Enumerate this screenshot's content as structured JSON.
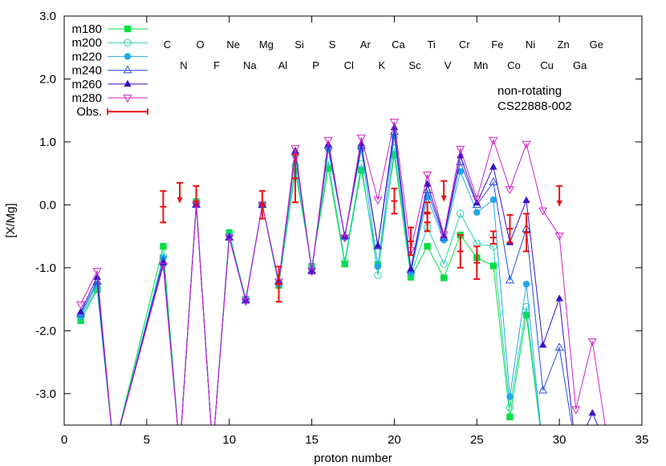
{
  "chart_data": {
    "type": "scatter",
    "xlabel": "proton number",
    "ylabel": "[X/Mg]",
    "xlim": [
      0,
      35
    ],
    "ylim": [
      -3.5,
      3.0
    ],
    "xticks": [
      0,
      5,
      10,
      15,
      20,
      25,
      30,
      35
    ],
    "xtick_labels": [
      "0",
      "5",
      "10",
      "15",
      "20",
      "25",
      "30",
      "35"
    ],
    "yticks": [
      -3.0,
      -2.0,
      -1.0,
      0.0,
      1.0,
      2.0,
      3.0
    ],
    "ytick_labels": [
      "-3.0",
      "-2.0",
      "-1.0",
      "0.0",
      "1.0",
      "2.0",
      "3.0"
    ],
    "grid": false,
    "legend_position": "top-left",
    "annotations": [
      "non-rotating",
      "CS22888-002"
    ],
    "element_labels_row1": [
      {
        "z": 6,
        "label": "C"
      },
      {
        "z": 8,
        "label": "O"
      },
      {
        "z": 10,
        "label": "Ne"
      },
      {
        "z": 12,
        "label": "Mg"
      },
      {
        "z": 14,
        "label": "Si"
      },
      {
        "z": 16,
        "label": "S"
      },
      {
        "z": 18,
        "label": "Ar"
      },
      {
        "z": 20,
        "label": "Ca"
      },
      {
        "z": 22,
        "label": "Ti"
      },
      {
        "z": 24,
        "label": "Cr"
      },
      {
        "z": 26,
        "label": "Fe"
      },
      {
        "z": 28,
        "label": "Ni"
      },
      {
        "z": 30,
        "label": "Zn"
      },
      {
        "z": 32,
        "label": "Ge"
      }
    ],
    "element_labels_row2": [
      {
        "z": 7,
        "label": "N"
      },
      {
        "z": 9,
        "label": "F"
      },
      {
        "z": 11,
        "label": "Na"
      },
      {
        "z": 13,
        "label": "Al"
      },
      {
        "z": 15,
        "label": "P"
      },
      {
        "z": 17,
        "label": "Cl"
      },
      {
        "z": 19,
        "label": "K"
      },
      {
        "z": 21,
        "label": "Sc"
      },
      {
        "z": 23,
        "label": "V"
      },
      {
        "z": 25,
        "label": "Mn"
      },
      {
        "z": 27,
        "label": "Co"
      },
      {
        "z": 29,
        "label": "Cu"
      },
      {
        "z": 31,
        "label": "Ga"
      }
    ],
    "series": [
      {
        "name": "m180",
        "color": "#00e040",
        "marker": "square-filled",
        "points": [
          [
            1,
            -1.84
          ],
          [
            2,
            -1.35
          ],
          [
            3,
            -3.9
          ],
          [
            6,
            -0.66
          ],
          [
            7,
            -3.9
          ],
          [
            8,
            0.05
          ],
          [
            9,
            -3.9
          ],
          [
            10,
            -0.44
          ],
          [
            11,
            -1.5
          ],
          [
            12,
            0.0
          ],
          [
            13,
            -1.28
          ],
          [
            14,
            0.54
          ],
          [
            15,
            -0.98
          ],
          [
            16,
            0.58
          ],
          [
            17,
            -0.94
          ],
          [
            18,
            0.55
          ],
          [
            19,
            -0.95
          ],
          [
            20,
            0.79
          ],
          [
            21,
            -1.15
          ],
          [
            22,
            -0.66
          ],
          [
            23,
            -1.16
          ],
          [
            24,
            -0.48
          ],
          [
            25,
            -0.84
          ],
          [
            26,
            -0.97
          ],
          [
            27,
            -3.37
          ],
          [
            28,
            -1.75
          ],
          [
            29,
            -3.9
          ]
        ]
      },
      {
        "name": "m200",
        "color": "#2ad0b0",
        "marker": "circle-open",
        "points": [
          [
            1,
            -1.8
          ],
          [
            2,
            -1.32
          ],
          [
            3,
            -3.9
          ],
          [
            6,
            -0.82
          ],
          [
            7,
            -3.9
          ],
          [
            8,
            0.05
          ],
          [
            9,
            -3.9
          ],
          [
            10,
            -0.47
          ],
          [
            11,
            -1.5
          ],
          [
            12,
            0.0
          ],
          [
            13,
            -1.25
          ],
          [
            14,
            0.62
          ],
          [
            15,
            -1.0
          ],
          [
            16,
            0.7
          ],
          [
            17,
            -0.9
          ],
          [
            18,
            0.65
          ],
          [
            19,
            -1.12
          ],
          [
            20,
            0.9
          ],
          [
            21,
            -1.12
          ],
          [
            22,
            -0.36
          ],
          [
            23,
            -0.94
          ],
          [
            24,
            -0.14
          ],
          [
            25,
            -0.62
          ],
          [
            26,
            -0.66
          ],
          [
            27,
            -3.22
          ],
          [
            28,
            -1.62
          ],
          [
            29,
            -3.9
          ]
        ]
      },
      {
        "name": "m220",
        "color": "#20a8ec",
        "marker": "circle-filled",
        "points": [
          [
            1,
            -1.77
          ],
          [
            2,
            -1.26
          ],
          [
            3,
            -3.9
          ],
          [
            6,
            -0.84
          ],
          [
            7,
            -3.9
          ],
          [
            8,
            0.0
          ],
          [
            9,
            -3.9
          ],
          [
            10,
            -0.5
          ],
          [
            11,
            -1.5
          ],
          [
            12,
            0.0
          ],
          [
            13,
            -1.26
          ],
          [
            14,
            0.78
          ],
          [
            15,
            -1.02
          ],
          [
            16,
            0.88
          ],
          [
            17,
            -0.52
          ],
          [
            18,
            0.88
          ],
          [
            19,
            -0.98
          ],
          [
            20,
            1.08
          ],
          [
            21,
            -1.08
          ],
          [
            22,
            0.12
          ],
          [
            23,
            -0.56
          ],
          [
            24,
            0.53
          ],
          [
            25,
            -0.12
          ],
          [
            26,
            0.08
          ],
          [
            27,
            -3.05
          ],
          [
            28,
            -1.26
          ],
          [
            29,
            -3.9
          ]
        ]
      },
      {
        "name": "m240",
        "color": "#2450e8",
        "marker": "triangle-up-open",
        "points": [
          [
            1,
            -1.73
          ],
          [
            2,
            -1.22
          ],
          [
            3,
            -3.9
          ],
          [
            6,
            -0.9
          ],
          [
            7,
            -3.9
          ],
          [
            8,
            0.0
          ],
          [
            9,
            -3.9
          ],
          [
            10,
            -0.52
          ],
          [
            11,
            -1.52
          ],
          [
            12,
            0.0
          ],
          [
            13,
            -1.22
          ],
          [
            14,
            0.84
          ],
          [
            15,
            -1.05
          ],
          [
            16,
            0.94
          ],
          [
            17,
            -0.5
          ],
          [
            18,
            0.94
          ],
          [
            19,
            -0.66
          ],
          [
            20,
            1.16
          ],
          [
            21,
            -1.04
          ],
          [
            22,
            0.23
          ],
          [
            23,
            -0.52
          ],
          [
            24,
            0.68
          ],
          [
            25,
            0.0
          ],
          [
            26,
            0.36
          ],
          [
            27,
            -1.2
          ],
          [
            28,
            -0.38
          ],
          [
            29,
            -2.95
          ],
          [
            30,
            -2.27
          ],
          [
            31,
            -3.9
          ]
        ]
      },
      {
        "name": "m260",
        "color": "#3a10c8",
        "marker": "triangle-up-filled",
        "points": [
          [
            1,
            -1.7
          ],
          [
            2,
            -1.15
          ],
          [
            3,
            -3.9
          ],
          [
            6,
            -0.92
          ],
          [
            7,
            -3.9
          ],
          [
            8,
            0.0
          ],
          [
            9,
            -3.9
          ],
          [
            10,
            -0.52
          ],
          [
            11,
            -1.52
          ],
          [
            12,
            0.0
          ],
          [
            13,
            -1.22
          ],
          [
            14,
            0.86
          ],
          [
            15,
            -1.06
          ],
          [
            16,
            0.96
          ],
          [
            17,
            -0.5
          ],
          [
            18,
            0.97
          ],
          [
            19,
            -0.65
          ],
          [
            20,
            1.23
          ],
          [
            21,
            -1.02
          ],
          [
            22,
            0.33
          ],
          [
            23,
            -0.49
          ],
          [
            24,
            0.78
          ],
          [
            25,
            0.03
          ],
          [
            26,
            0.6
          ],
          [
            27,
            -0.6
          ],
          [
            28,
            0.07
          ],
          [
            29,
            -2.23
          ],
          [
            30,
            -1.49
          ],
          [
            31,
            -3.9
          ],
          [
            32,
            -3.31
          ],
          [
            33,
            -3.9
          ]
        ]
      },
      {
        "name": "m280",
        "color": "#d020c8",
        "marker": "triangle-down-open",
        "points": [
          [
            1,
            -1.58
          ],
          [
            2,
            -1.05
          ],
          [
            3,
            -3.9
          ],
          [
            6,
            -0.97
          ],
          [
            7,
            -3.9
          ],
          [
            8,
            0.0
          ],
          [
            9,
            -3.9
          ],
          [
            10,
            -0.52
          ],
          [
            11,
            -1.53
          ],
          [
            12,
            0.0
          ],
          [
            13,
            -1.22
          ],
          [
            14,
            0.9
          ],
          [
            15,
            -1.05
          ],
          [
            16,
            1.03
          ],
          [
            17,
            -0.52
          ],
          [
            18,
            1.07
          ],
          [
            19,
            0.08
          ],
          [
            20,
            1.32
          ],
          [
            21,
            -0.72
          ],
          [
            22,
            0.48
          ],
          [
            23,
            -0.47
          ],
          [
            24,
            0.89
          ],
          [
            25,
            0.1
          ],
          [
            26,
            1.03
          ],
          [
            27,
            0.25
          ],
          [
            28,
            0.97
          ],
          [
            29,
            -0.09
          ],
          [
            30,
            -0.49
          ],
          [
            31,
            -3.25
          ],
          [
            32,
            -2.17
          ],
          [
            33,
            -3.9
          ]
        ]
      }
    ],
    "observations": {
      "name": "Obs.",
      "color": "#ee1010",
      "points": [
        {
          "x": 6,
          "y": -0.03,
          "err": 0.25
        },
        {
          "x": 12,
          "y": 0.0,
          "err": 0.22
        },
        {
          "x": 13,
          "y": -1.26,
          "err": 0.28
        },
        {
          "x": 14,
          "y": 0.42,
          "err": 0.38
        },
        {
          "x": 20,
          "y": 0.06,
          "err": 0.2
        },
        {
          "x": 21,
          "y": -0.58,
          "err": 0.22
        },
        {
          "x": 22,
          "y": -0.12,
          "err": 0.16
        },
        {
          "x": 22,
          "y": -0.28,
          "err": 0.14
        },
        {
          "x": 24,
          "y": -0.74,
          "err": 0.26
        },
        {
          "x": 25,
          "y": -0.92,
          "err": 0.26
        },
        {
          "x": 26,
          "y": -0.52,
          "err": 0.1
        },
        {
          "x": 27,
          "y": -0.38,
          "err": 0.22
        },
        {
          "x": 28,
          "y": -0.44,
          "err": 0.3
        }
      ],
      "upper_limits": [
        {
          "x": 7,
          "y": 0.35
        },
        {
          "x": 8,
          "y": 0.3
        },
        {
          "x": 23,
          "y": 0.38
        },
        {
          "x": 30,
          "y": 0.3
        }
      ]
    }
  }
}
